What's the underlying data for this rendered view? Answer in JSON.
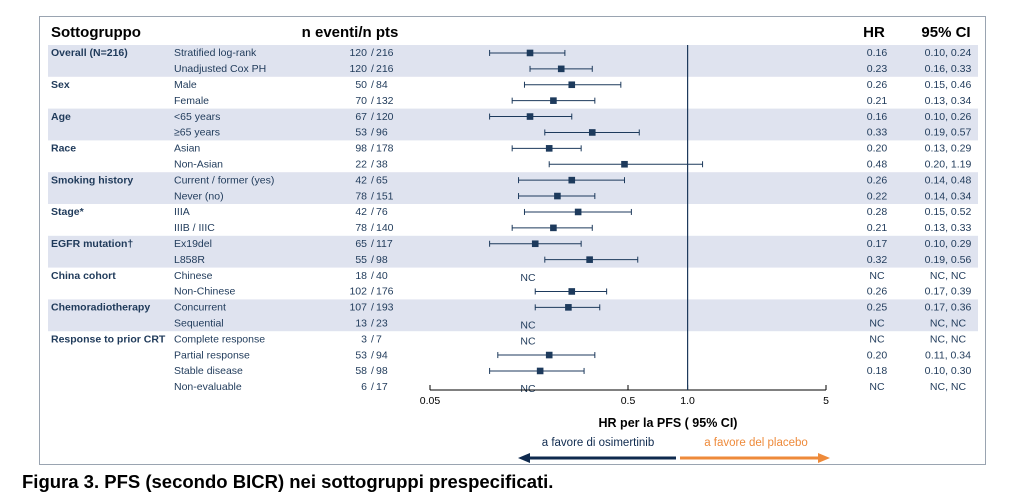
{
  "chart_data": {
    "type": "forest",
    "headers": {
      "subgroup": "Sottogruppo",
      "events": "n eventi/n pts",
      "hr": "HR",
      "ci": "95% CI"
    },
    "xlabel": "HR per la PFS ( 95% CI)",
    "xscale": "log",
    "xlim": [
      0.05,
      5
    ],
    "xticks": [
      {
        "value": 0.05,
        "label": "0.05"
      },
      {
        "value": 0.5,
        "label": "0.5"
      },
      {
        "value": 1,
        "label": "1.0"
      },
      {
        "value": 5,
        "label": "5"
      }
    ],
    "reference_line": 1,
    "favor_left": "a favore di osimertinib",
    "favor_right": "a favore del placebo",
    "colors": {
      "band": "#dfe3ef",
      "marker": "#1d3a5c",
      "left_arrow": "#0f2a4e",
      "right_arrow": "#ee8a3a",
      "left_text": "#0f2a4e",
      "right_text": "#ee8a3a",
      "text": "#1f3a5a"
    },
    "groups": [
      {
        "name": "Overall (N=216)",
        "shaded": true,
        "rows": [
          {
            "label": "Stratified log-rank",
            "n_events": "120",
            "n_pts": "216",
            "hr": 0.16,
            "lo": 0.1,
            "hi": 0.24,
            "hr_text": "0.16",
            "ci_text": "0.10, 0.24"
          },
          {
            "label": "Unadjusted Cox PH",
            "n_events": "120",
            "n_pts": "216",
            "hr": 0.23,
            "lo": 0.16,
            "hi": 0.33,
            "hr_text": "0.23",
            "ci_text": "0.16, 0.33"
          }
        ]
      },
      {
        "name": "Sex",
        "shaded": false,
        "rows": [
          {
            "label": "Male",
            "n_events": "50",
            "n_pts": "84",
            "hr": 0.26,
            "lo": 0.15,
            "hi": 0.46,
            "hr_text": "0.26",
            "ci_text": "0.15, 0.46"
          },
          {
            "label": "Female",
            "n_events": "70",
            "n_pts": "132",
            "hr": 0.21,
            "lo": 0.13,
            "hi": 0.34,
            "hr_text": "0.21",
            "ci_text": "0.13, 0.34"
          }
        ]
      },
      {
        "name": "Age",
        "shaded": true,
        "rows": [
          {
            "label": "<65 years",
            "n_events": "67",
            "n_pts": "120",
            "hr": 0.16,
            "lo": 0.1,
            "hi": 0.26,
            "hr_text": "0.16",
            "ci_text": "0.10, 0.26"
          },
          {
            "label": "≥65 years",
            "n_events": "53",
            "n_pts": "96",
            "hr": 0.33,
            "lo": 0.19,
            "hi": 0.57,
            "hr_text": "0.33",
            "ci_text": "0.19, 0.57"
          }
        ]
      },
      {
        "name": "Race",
        "shaded": false,
        "rows": [
          {
            "label": "Asian",
            "n_events": "98",
            "n_pts": "178",
            "hr": 0.2,
            "lo": 0.13,
            "hi": 0.29,
            "hr_text": "0.20",
            "ci_text": "0.13, 0.29"
          },
          {
            "label": "Non-Asian",
            "n_events": "22",
            "n_pts": "38",
            "hr": 0.48,
            "lo": 0.2,
            "hi": 1.19,
            "hr_text": "0.48",
            "ci_text": "0.20, 1.19"
          }
        ]
      },
      {
        "name": "Smoking history",
        "shaded": true,
        "rows": [
          {
            "label": "Current / former (yes)",
            "n_events": "42",
            "n_pts": "65",
            "hr": 0.26,
            "lo": 0.14,
            "hi": 0.48,
            "hr_text": "0.26",
            "ci_text": "0.14, 0.48"
          },
          {
            "label": "Never (no)",
            "n_events": "78",
            "n_pts": "151",
            "hr": 0.22,
            "lo": 0.14,
            "hi": 0.34,
            "hr_text": "0.22",
            "ci_text": "0.14, 0.34"
          }
        ]
      },
      {
        "name": "Stage*",
        "shaded": false,
        "rows": [
          {
            "label": "IIIA",
            "n_events": "42",
            "n_pts": "76",
            "hr": 0.28,
            "lo": 0.15,
            "hi": 0.52,
            "hr_text": "0.28",
            "ci_text": "0.15, 0.52"
          },
          {
            "label": "IIIB / IIIC",
            "n_events": "78",
            "n_pts": "140",
            "hr": 0.21,
            "lo": 0.13,
            "hi": 0.33,
            "hr_text": "0.21",
            "ci_text": "0.13, 0.33"
          }
        ]
      },
      {
        "name": "EGFR mutation†",
        "shaded": true,
        "rows": [
          {
            "label": "Ex19del",
            "n_events": "65",
            "n_pts": "117",
            "hr": 0.17,
            "lo": 0.1,
            "hi": 0.29,
            "hr_text": "0.17",
            "ci_text": "0.10, 0.29"
          },
          {
            "label": "L858R",
            "n_events": "55",
            "n_pts": "98",
            "hr": 0.32,
            "lo": 0.19,
            "hi": 0.56,
            "hr_text": "0.32",
            "ci_text": "0.19, 0.56"
          }
        ]
      },
      {
        "name": "China cohort",
        "shaded": false,
        "rows": [
          {
            "label": "Chinese",
            "n_events": "18",
            "n_pts": "40",
            "hr": null,
            "lo": null,
            "hi": null,
            "nc": "NC",
            "hr_text": "NC",
            "ci_text": "NC, NC"
          },
          {
            "label": "Non-Chinese",
            "n_events": "102",
            "n_pts": "176",
            "hr": 0.26,
            "lo": 0.17,
            "hi": 0.39,
            "hr_text": "0.26",
            "ci_text": "0.17, 0.39"
          }
        ]
      },
      {
        "name": "Chemoradiotherapy",
        "shaded": true,
        "rows": [
          {
            "label": "Concurrent",
            "n_events": "107",
            "n_pts": "193",
            "hr": 0.25,
            "lo": 0.17,
            "hi": 0.36,
            "hr_text": "0.25",
            "ci_text": "0.17, 0.36"
          },
          {
            "label": "Sequential",
            "n_events": "13",
            "n_pts": "23",
            "hr": null,
            "lo": null,
            "hi": null,
            "nc": "NC",
            "hr_text": "NC",
            "ci_text": "NC, NC"
          }
        ]
      },
      {
        "name": "Response to prior CRT",
        "shaded": false,
        "rows": [
          {
            "label": "Complete response",
            "n_events": "3",
            "n_pts": "7",
            "hr": null,
            "lo": null,
            "hi": null,
            "nc": "NC",
            "hr_text": "NC",
            "ci_text": "NC, NC"
          },
          {
            "label": "Partial response",
            "n_events": "53",
            "n_pts": "94",
            "hr": 0.2,
            "lo": 0.11,
            "hi": 0.34,
            "hr_text": "0.20",
            "ci_text": "0.11, 0.34"
          },
          {
            "label": "Stable disease",
            "n_events": "58",
            "n_pts": "98",
            "hr": 0.18,
            "lo": 0.1,
            "hi": 0.3,
            "hr_text": "0.18",
            "ci_text": "0.10, 0.30"
          },
          {
            "label": "Non-evaluable",
            "n_events": "6",
            "n_pts": "17",
            "hr": null,
            "lo": null,
            "hi": null,
            "nc": "NC",
            "hr_text": "NC",
            "ci_text": "NC, NC"
          }
        ]
      }
    ]
  },
  "caption": "Figura 3. PFS (secondo BICR) nei sottogruppi prespecificati."
}
